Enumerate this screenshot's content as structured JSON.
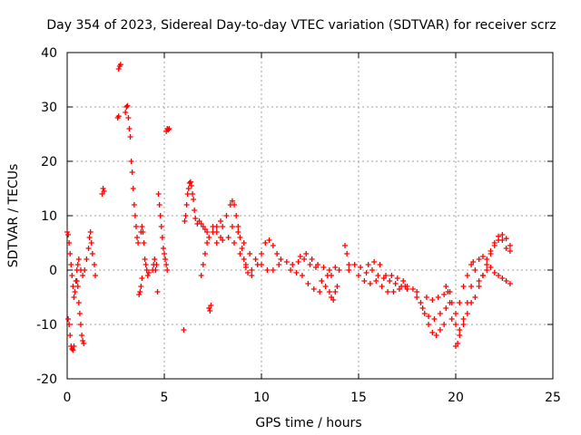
{
  "chart_data": {
    "type": "scatter",
    "title": "Day 354 of 2023, Sidereal Day-to-day VTEC variation (SDTVAR) for receiver scrz",
    "xlabel": "GPS time / hours",
    "ylabel": "SDTVAR / TECUs",
    "xlim": [
      0,
      25
    ],
    "ylim": [
      -20,
      40
    ],
    "xticks": [
      0,
      5,
      10,
      15,
      20,
      25
    ],
    "xtick_labels": [
      "0",
      "5",
      "10",
      "15",
      "20",
      "25"
    ],
    "yticks": [
      -20,
      -10,
      0,
      10,
      20,
      30,
      40
    ],
    "ytick_labels": [
      "-20",
      "-10",
      "0",
      "10",
      "20",
      "30",
      "40"
    ],
    "grid": true,
    "marker": "+",
    "series": [
      {
        "name": "scrz",
        "color": "#ff0000",
        "points": [
          [
            0.0,
            7
          ],
          [
            0.05,
            6.5
          ],
          [
            0.1,
            5
          ],
          [
            0.15,
            3
          ],
          [
            0.2,
            1
          ],
          [
            0.25,
            -1
          ],
          [
            0.3,
            -3
          ],
          [
            0.35,
            -5
          ],
          [
            0.05,
            -9
          ],
          [
            0.1,
            -10
          ],
          [
            0.15,
            -12
          ],
          [
            0.2,
            -14
          ],
          [
            0.25,
            -14.5
          ],
          [
            0.3,
            -14.7
          ],
          [
            0.35,
            -14
          ],
          [
            0.4,
            -4
          ],
          [
            0.45,
            -2
          ],
          [
            0.5,
            0
          ],
          [
            0.55,
            -3
          ],
          [
            0.6,
            -6
          ],
          [
            0.65,
            -8
          ],
          [
            0.7,
            -10
          ],
          [
            0.75,
            -12
          ],
          [
            0.8,
            -13
          ],
          [
            0.85,
            -13.5
          ],
          [
            0.5,
            -2
          ],
          [
            0.55,
            1
          ],
          [
            0.6,
            2
          ],
          [
            0.7,
            0
          ],
          [
            0.8,
            -1
          ],
          [
            0.9,
            0
          ],
          [
            1.0,
            2
          ],
          [
            1.1,
            4
          ],
          [
            1.15,
            6
          ],
          [
            1.2,
            7
          ],
          [
            1.25,
            5
          ],
          [
            1.3,
            3
          ],
          [
            1.4,
            1
          ],
          [
            1.45,
            -1
          ],
          [
            1.8,
            14
          ],
          [
            1.85,
            15
          ],
          [
            1.9,
            14.5
          ],
          [
            2.6,
            28
          ],
          [
            2.65,
            28.3
          ],
          [
            2.65,
            37
          ],
          [
            2.7,
            37.5
          ],
          [
            2.75,
            37.8
          ],
          [
            3.0,
            29
          ],
          [
            3.05,
            30
          ],
          [
            3.1,
            30.2
          ],
          [
            3.15,
            28
          ],
          [
            3.2,
            26
          ],
          [
            3.25,
            24.5
          ],
          [
            3.3,
            20
          ],
          [
            3.35,
            18
          ],
          [
            3.4,
            15
          ],
          [
            3.45,
            12
          ],
          [
            3.5,
            10
          ],
          [
            3.55,
            8
          ],
          [
            3.6,
            6
          ],
          [
            3.65,
            5
          ],
          [
            3.7,
            -4.5
          ],
          [
            3.75,
            -4
          ],
          [
            3.8,
            -3
          ],
          [
            3.85,
            -1.5
          ],
          [
            3.8,
            7
          ],
          [
            3.85,
            8
          ],
          [
            3.9,
            7
          ],
          [
            3.95,
            5
          ],
          [
            4.0,
            2
          ],
          [
            4.05,
            1
          ],
          [
            4.1,
            0
          ],
          [
            4.15,
            -1
          ],
          [
            4.2,
            -0.5
          ],
          [
            4.4,
            0
          ],
          [
            4.45,
            1
          ],
          [
            4.5,
            2
          ],
          [
            4.55,
            0
          ],
          [
            4.6,
            1
          ],
          [
            4.65,
            -4
          ],
          [
            4.7,
            14
          ],
          [
            4.75,
            12
          ],
          [
            4.8,
            10
          ],
          [
            4.85,
            8
          ],
          [
            4.9,
            6
          ],
          [
            4.95,
            4
          ],
          [
            5.0,
            3
          ],
          [
            5.05,
            2
          ],
          [
            5.1,
            1
          ],
          [
            5.15,
            0
          ],
          [
            5.1,
            25.5
          ],
          [
            5.15,
            26
          ],
          [
            5.2,
            25.8
          ],
          [
            5.25,
            26
          ],
          [
            6.0,
            -11
          ],
          [
            6.05,
            9
          ],
          [
            6.1,
            10
          ],
          [
            6.15,
            12
          ],
          [
            6.2,
            14
          ],
          [
            6.25,
            15
          ],
          [
            6.3,
            16
          ],
          [
            6.35,
            16.2
          ],
          [
            6.4,
            15.5
          ],
          [
            6.45,
            14
          ],
          [
            6.5,
            13
          ],
          [
            6.55,
            11
          ],
          [
            6.6,
            9.5
          ],
          [
            6.7,
            8.5
          ],
          [
            6.8,
            9
          ],
          [
            6.9,
            8.5
          ],
          [
            7.0,
            8
          ],
          [
            7.1,
            7.5
          ],
          [
            7.2,
            7
          ],
          [
            7.3,
            -7
          ],
          [
            7.35,
            -7.5
          ],
          [
            7.4,
            -6.5
          ],
          [
            6.9,
            -1
          ],
          [
            7.0,
            1
          ],
          [
            7.1,
            3
          ],
          [
            7.2,
            5
          ],
          [
            7.3,
            6
          ],
          [
            7.5,
            7
          ],
          [
            7.7,
            8
          ],
          [
            7.9,
            9
          ],
          [
            7.5,
            8
          ],
          [
            7.7,
            7
          ],
          [
            7.9,
            6
          ],
          [
            8.0,
            8
          ],
          [
            8.2,
            10
          ],
          [
            8.4,
            12
          ],
          [
            8.5,
            12.7
          ],
          [
            8.6,
            12
          ],
          [
            8.7,
            10
          ],
          [
            8.8,
            8
          ],
          [
            8.9,
            6
          ],
          [
            9.0,
            4
          ],
          [
            9.1,
            2
          ],
          [
            9.2,
            0.5
          ],
          [
            9.3,
            -0.5
          ],
          [
            9.5,
            -1
          ],
          [
            7.7,
            5
          ],
          [
            8.0,
            5.5
          ],
          [
            8.3,
            6
          ],
          [
            8.6,
            5
          ],
          [
            8.9,
            3
          ],
          [
            9.2,
            1
          ],
          [
            9.5,
            0
          ],
          [
            9.8,
            1
          ],
          [
            10.0,
            3
          ],
          [
            10.2,
            5
          ],
          [
            10.4,
            5.5
          ],
          [
            10.6,
            4.5
          ],
          [
            10.8,
            3
          ],
          [
            8.5,
            8
          ],
          [
            8.8,
            7
          ],
          [
            9.1,
            5
          ],
          [
            9.4,
            3
          ],
          [
            9.7,
            2
          ],
          [
            10.0,
            1
          ],
          [
            10.3,
            0
          ],
          [
            10.6,
            0
          ],
          [
            10.9,
            1
          ],
          [
            11.0,
            2
          ],
          [
            11.3,
            1.5
          ],
          [
            11.6,
            1
          ],
          [
            11.9,
            1.5
          ],
          [
            12.2,
            2
          ],
          [
            12.5,
            1
          ],
          [
            12.8,
            0.5
          ],
          [
            13.1,
            -2
          ],
          [
            13.4,
            -1
          ],
          [
            11.5,
            0
          ],
          [
            11.8,
            -0.5
          ],
          [
            12.1,
            -1
          ],
          [
            12.4,
            -2.5
          ],
          [
            12.7,
            -3.5
          ],
          [
            13.0,
            -4
          ],
          [
            13.3,
            -3
          ],
          [
            13.6,
            -1
          ],
          [
            12.0,
            2.5
          ],
          [
            12.3,
            3
          ],
          [
            12.6,
            2
          ],
          [
            12.9,
            1
          ],
          [
            13.2,
            0.5
          ],
          [
            13.5,
            0
          ],
          [
            13.8,
            0.5
          ],
          [
            14.0,
            0
          ],
          [
            13.5,
            -4
          ],
          [
            13.6,
            -5
          ],
          [
            13.7,
            -5.5
          ],
          [
            13.8,
            -4
          ],
          [
            13.9,
            -3
          ],
          [
            14.3,
            4.5
          ],
          [
            14.4,
            3
          ],
          [
            14.5,
            1
          ],
          [
            14.5,
            0
          ],
          [
            14.8,
            1
          ],
          [
            15.1,
            0.5
          ],
          [
            15.4,
            -0.5
          ],
          [
            15.7,
            0
          ],
          [
            16.0,
            -1
          ],
          [
            16.3,
            -1.5
          ],
          [
            16.6,
            -2
          ],
          [
            16.9,
            -2.5
          ],
          [
            17.2,
            -3
          ],
          [
            17.5,
            -3.5
          ],
          [
            15.0,
            -1
          ],
          [
            15.3,
            -2
          ],
          [
            15.6,
            -2.5
          ],
          [
            15.9,
            -2
          ],
          [
            16.2,
            -3
          ],
          [
            16.5,
            -4
          ],
          [
            16.8,
            -4
          ],
          [
            17.1,
            -3.5
          ],
          [
            17.4,
            -3
          ],
          [
            15.5,
            1
          ],
          [
            15.8,
            1.5
          ],
          [
            16.1,
            1
          ],
          [
            16.4,
            -1
          ],
          [
            16.7,
            -1
          ],
          [
            17.0,
            -1.5
          ],
          [
            17.3,
            -2
          ],
          [
            17.5,
            -3
          ],
          [
            17.8,
            -3.5
          ],
          [
            18.0,
            -4
          ],
          [
            18.2,
            -6
          ],
          [
            18.4,
            -8
          ],
          [
            18.6,
            -10
          ],
          [
            18.8,
            -11.5
          ],
          [
            19.0,
            -12
          ],
          [
            19.2,
            -11
          ],
          [
            19.4,
            -10
          ],
          [
            18.0,
            -5
          ],
          [
            18.3,
            -7
          ],
          [
            18.6,
            -8.5
          ],
          [
            18.9,
            -9
          ],
          [
            19.2,
            -8
          ],
          [
            19.5,
            -7
          ],
          [
            19.7,
            -6
          ],
          [
            18.5,
            -5
          ],
          [
            18.8,
            -5.5
          ],
          [
            19.1,
            -5
          ],
          [
            19.4,
            -4.5
          ],
          [
            19.6,
            -4
          ],
          [
            19.5,
            -3
          ],
          [
            19.7,
            -4
          ],
          [
            19.8,
            -6
          ],
          [
            20.0,
            -8
          ],
          [
            20.2,
            -6
          ],
          [
            20.4,
            -3
          ],
          [
            20.6,
            -1
          ],
          [
            20.8,
            1
          ],
          [
            20.9,
            1.5
          ],
          [
            19.8,
            -9
          ],
          [
            20.0,
            -10
          ],
          [
            20.2,
            -11
          ],
          [
            20.4,
            -9
          ],
          [
            20.6,
            -6
          ],
          [
            20.8,
            -3
          ],
          [
            21.0,
            0
          ],
          [
            21.2,
            2
          ],
          [
            21.4,
            2.5
          ],
          [
            20.0,
            -14
          ],
          [
            20.1,
            -13.5
          ],
          [
            20.2,
            -12
          ],
          [
            20.4,
            -10
          ],
          [
            20.6,
            -8
          ],
          [
            20.8,
            -6
          ],
          [
            21.0,
            -5
          ],
          [
            21.2,
            -3
          ],
          [
            21.4,
            -1
          ],
          [
            21.6,
            1
          ],
          [
            21.8,
            3
          ],
          [
            22.0,
            5
          ],
          [
            22.2,
            6.2
          ],
          [
            22.4,
            6.5
          ],
          [
            22.6,
            5.8
          ],
          [
            22.8,
            4.5
          ],
          [
            21.6,
            2
          ],
          [
            21.8,
            3.5
          ],
          [
            22.0,
            4.5
          ],
          [
            22.2,
            5.5
          ],
          [
            22.4,
            5.5
          ],
          [
            22.6,
            4
          ],
          [
            22.8,
            3.5
          ],
          [
            21.2,
            -2
          ],
          [
            21.4,
            -1
          ],
          [
            21.6,
            0
          ],
          [
            21.8,
            0.5
          ],
          [
            22.0,
            -0.5
          ],
          [
            22.2,
            -1
          ],
          [
            22.4,
            -1.5
          ],
          [
            22.6,
            -2
          ],
          [
            22.8,
            -2.5
          ]
        ]
      }
    ]
  }
}
